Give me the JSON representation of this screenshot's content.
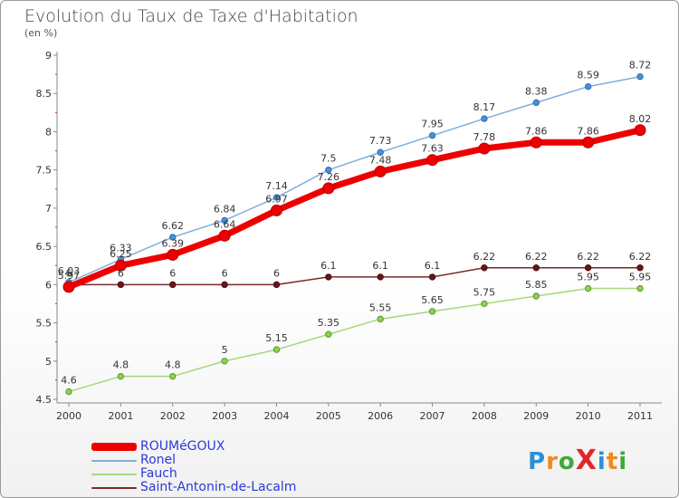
{
  "header": {
    "title": "Evolution du Taux de Taxe d'Habitation",
    "subtitle": "(en %)"
  },
  "logo": {
    "text": "ProXiti",
    "letters": [
      {
        "ch": "P",
        "color": "#2a8fd6"
      },
      {
        "ch": "r",
        "color": "#f08a1c"
      },
      {
        "ch": "o",
        "color": "#3daa3a"
      },
      {
        "ch": "X",
        "color": "#e1262c"
      },
      {
        "ch": "i",
        "color": "#2a8fd6"
      },
      {
        "ch": "t",
        "color": "#f08a1c"
      },
      {
        "ch": "i",
        "color": "#3daa3a"
      }
    ]
  },
  "chart_data": {
    "type": "line",
    "title": "Evolution du Taux de Taxe d'Habitation",
    "ylabel": "(en %)",
    "xlabel": "",
    "x": [
      "2000",
      "2001",
      "2002",
      "2003",
      "2004",
      "2005",
      "2006",
      "2007",
      "2008",
      "2009",
      "2010",
      "2011"
    ],
    "ylim": [
      4.5,
      9
    ],
    "yticks": [
      "4.5",
      "5",
      "5.5",
      "6",
      "6.5",
      "7",
      "7.5",
      "8",
      "8.5",
      "9"
    ],
    "grid": false,
    "legend_position": "bottom-left",
    "series": [
      {
        "name": "ROUMéGOUX",
        "color": "#ee0000",
        "values": [
          5.97,
          6.25,
          6.39,
          6.64,
          6.97,
          7.26,
          7.48,
          7.63,
          7.78,
          7.86,
          7.86,
          8.02
        ],
        "labels": [
          "5.97",
          "6.25",
          "6.39",
          "6.64",
          "6.97",
          "7.26",
          "7.48",
          "7.63",
          "7.78",
          "7.86",
          "7.86",
          "8.02"
        ]
      },
      {
        "name": "Ronel",
        "color": "#7fb0dc",
        "values": [
          6.03,
          6.33,
          6.62,
          6.84,
          7.14,
          7.5,
          7.73,
          7.95,
          8.17,
          8.38,
          8.59,
          8.72
        ],
        "labels": [
          "6.03",
          "6.33",
          "6.62",
          "6.84",
          "7.14",
          "7.5",
          "7.73",
          "7.95",
          "8.17",
          "8.38",
          "8.59",
          "8.72"
        ]
      },
      {
        "name": "Fauch",
        "color": "#a8d67e",
        "values": [
          4.6,
          4.8,
          4.8,
          5,
          5.15,
          5.35,
          5.55,
          5.65,
          5.75,
          5.85,
          5.95,
          5.95
        ],
        "labels": [
          "4.6",
          "4.8",
          "4.8",
          "5",
          "5.15",
          "5.35",
          "5.55",
          "5.65",
          "5.75",
          "5.85",
          "5.95",
          "5.95"
        ]
      },
      {
        "name": "Saint-Antonin-de-Lacalm",
        "color": "#7a2a2a",
        "values": [
          6,
          6,
          6,
          6,
          6,
          6.1,
          6.1,
          6.1,
          6.22,
          6.22,
          6.22,
          6.22
        ],
        "labels": [
          "6",
          "6",
          "6",
          "6",
          "6",
          "6.1",
          "6.1",
          "6.1",
          "6.22",
          "6.22",
          "6.22",
          "6.22"
        ]
      }
    ]
  }
}
